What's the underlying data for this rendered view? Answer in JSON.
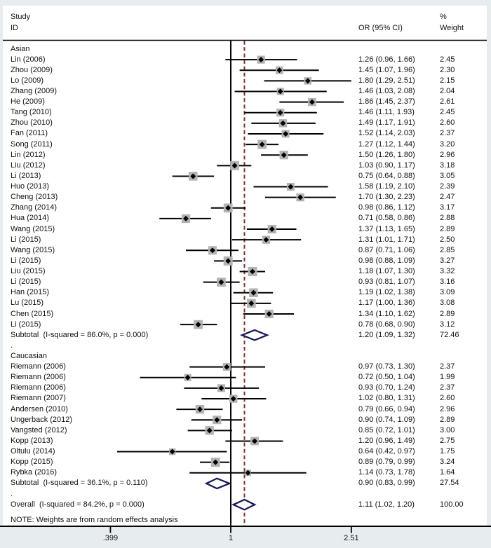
{
  "header": {
    "col_study_1": "Study",
    "col_study_2": "ID",
    "col_or": "OR (95% CI)",
    "col_weight_1": "%",
    "col_weight_2": "Weight"
  },
  "note": "NOTE: Weights are from random effects analysis",
  "chart_data": {
    "type": "forest",
    "effect_measure": "OR",
    "null_value": 1,
    "x_ticks": [
      {
        "value": 0.399,
        "label": ".399"
      },
      {
        "value": 1,
        "label": "1"
      },
      {
        "value": 2.51,
        "label": "2.51"
      }
    ],
    "groups": [
      {
        "label": "Asian",
        "studies": [
          {
            "name": "Lin (2006)",
            "or": 1.26,
            "lo": 0.96,
            "hi": 1.66,
            "ci": "1.26 (0.96, 1.66)",
            "weight": "2.45"
          },
          {
            "name": "Zhou (2009)",
            "or": 1.45,
            "lo": 1.07,
            "hi": 1.96,
            "ci": "1.45 (1.07, 1.96)",
            "weight": "2.30"
          },
          {
            "name": "Lo (2009)",
            "or": 1.8,
            "lo": 1.29,
            "hi": 2.51,
            "ci": "1.80 (1.29, 2.51)",
            "weight": "2.15"
          },
          {
            "name": "Zhang (2009)",
            "or": 1.46,
            "lo": 1.03,
            "hi": 2.08,
            "ci": "1.46 (1.03, 2.08)",
            "weight": "2.04"
          },
          {
            "name": "He (2009)",
            "or": 1.86,
            "lo": 1.45,
            "hi": 2.37,
            "ci": "1.86 (1.45, 2.37)",
            "weight": "2.61"
          },
          {
            "name": "Tang (2010)",
            "or": 1.46,
            "lo": 1.11,
            "hi": 1.93,
            "ci": "1.46 (1.11, 1.93)",
            "weight": "2.45"
          },
          {
            "name": "Zhou (2010)",
            "or": 1.49,
            "lo": 1.17,
            "hi": 1.91,
            "ci": "1.49 (1.17, 1.91)",
            "weight": "2.60"
          },
          {
            "name": "Fan (2011)",
            "or": 1.52,
            "lo": 1.14,
            "hi": 2.03,
            "ci": "1.52 (1.14, 2.03)",
            "weight": "2.37"
          },
          {
            "name": "Song (2011)",
            "or": 1.27,
            "lo": 1.12,
            "hi": 1.44,
            "ci": "1.27 (1.12, 1.44)",
            "weight": "3.20"
          },
          {
            "name": "Lin (2012)",
            "or": 1.5,
            "lo": 1.26,
            "hi": 1.8,
            "ci": "1.50 (1.26, 1.80)",
            "weight": "2.96"
          },
          {
            "name": "Liu (2012)",
            "or": 1.03,
            "lo": 0.9,
            "hi": 1.17,
            "ci": "1.03 (0.90, 1.17)",
            "weight": "3.18"
          },
          {
            "name": "Li (2013)",
            "or": 0.75,
            "lo": 0.64,
            "hi": 0.88,
            "ci": "0.75 (0.64, 0.88)",
            "weight": "3.05"
          },
          {
            "name": "Huo (2013)",
            "or": 1.58,
            "lo": 1.19,
            "hi": 2.1,
            "ci": "1.58 (1.19, 2.10)",
            "weight": "2.39"
          },
          {
            "name": "Cheng (2013)",
            "or": 1.7,
            "lo": 1.3,
            "hi": 2.23,
            "ci": "1.70 (1.30, 2.23)",
            "weight": "2.47"
          },
          {
            "name": "Zhang (2014)",
            "or": 0.98,
            "lo": 0.86,
            "hi": 1.12,
            "ci": "0.98 (0.86, 1.12)",
            "weight": "3.17"
          },
          {
            "name": "Hua (2014)",
            "or": 0.71,
            "lo": 0.58,
            "hi": 0.86,
            "ci": "0.71 (0.58, 0.86)",
            "weight": "2.88"
          },
          {
            "name": "Wang (2015)",
            "or": 1.37,
            "lo": 1.13,
            "hi": 1.65,
            "ci": "1.37 (1.13, 1.65)",
            "weight": "2.89"
          },
          {
            "name": "Li (2015)",
            "or": 1.31,
            "lo": 1.01,
            "hi": 1.71,
            "ci": "1.31 (1.01, 1.71)",
            "weight": "2.50"
          },
          {
            "name": "Wang (2015)",
            "or": 0.87,
            "lo": 0.71,
            "hi": 1.06,
            "ci": "0.87 (0.71, 1.06)",
            "weight": "2.85"
          },
          {
            "name": "Li (2015)",
            "or": 0.98,
            "lo": 0.88,
            "hi": 1.09,
            "ci": "0.98 (0.88, 1.09)",
            "weight": "3.27"
          },
          {
            "name": "Liu (2015)",
            "or": 1.18,
            "lo": 1.07,
            "hi": 1.3,
            "ci": "1.18 (1.07, 1.30)",
            "weight": "3.32"
          },
          {
            "name": "Li (2015)",
            "or": 0.93,
            "lo": 0.81,
            "hi": 1.07,
            "ci": "0.93 (0.81, 1.07)",
            "weight": "3.16"
          },
          {
            "name": "Han (2015)",
            "or": 1.19,
            "lo": 1.02,
            "hi": 1.38,
            "ci": "1.19 (1.02, 1.38)",
            "weight": "3.09"
          },
          {
            "name": "Lu (2015)",
            "or": 1.17,
            "lo": 1.0,
            "hi": 1.36,
            "ci": "1.17 (1.00, 1.36)",
            "weight": "3.08"
          },
          {
            "name": "Chen (2015)",
            "or": 1.34,
            "lo": 1.1,
            "hi": 1.62,
            "ci": "1.34 (1.10, 1.62)",
            "weight": "2.89"
          },
          {
            "name": "Li (2015)",
            "or": 0.78,
            "lo": 0.68,
            "hi": 0.9,
            "ci": "0.78 (0.68, 0.90)",
            "weight": "3.12"
          }
        ],
        "subtotal": {
          "label": "Subtotal  (I-squared = 86.0%, p = 0.000)",
          "or": 1.2,
          "lo": 1.09,
          "hi": 1.32,
          "ci": "1.20 (1.09, 1.32)",
          "weight": "72.46"
        }
      },
      {
        "label": "Caucasian",
        "studies": [
          {
            "name": "Riemann (2006)",
            "or": 0.97,
            "lo": 0.73,
            "hi": 1.3,
            "ci": "0.97 (0.73, 1.30)",
            "weight": "2.37"
          },
          {
            "name": "Riemann (2006)",
            "or": 0.72,
            "lo": 0.5,
            "hi": 1.04,
            "ci": "0.72 (0.50, 1.04)",
            "weight": "1.99"
          },
          {
            "name": "Riemann (2006)",
            "or": 0.93,
            "lo": 0.7,
            "hi": 1.24,
            "ci": "0.93 (0.70, 1.24)",
            "weight": "2.37"
          },
          {
            "name": "Riemann (2007)",
            "or": 1.02,
            "lo": 0.8,
            "hi": 1.31,
            "ci": "1.02 (0.80, 1.31)",
            "weight": "2.60"
          },
          {
            "name": "Andersen (2010)",
            "or": 0.79,
            "lo": 0.66,
            "hi": 0.94,
            "ci": "0.79 (0.66, 0.94)",
            "weight": "2.96"
          },
          {
            "name": "Ungerback (2012)",
            "or": 0.9,
            "lo": 0.74,
            "hi": 1.09,
            "ci": "0.90 (0.74, 1.09)",
            "weight": "2.89"
          },
          {
            "name": "Vangsted (2012)",
            "or": 0.85,
            "lo": 0.72,
            "hi": 1.01,
            "ci": "0.85 (0.72, 1.01)",
            "weight": "3.00"
          },
          {
            "name": "Kopp (2013)",
            "or": 1.2,
            "lo": 0.96,
            "hi": 1.49,
            "ci": "1.20 (0.96, 1.49)",
            "weight": "2.75"
          },
          {
            "name": "Oltulu (2014)",
            "or": 0.64,
            "lo": 0.42,
            "hi": 0.97,
            "ci": "0.64 (0.42, 0.97)",
            "weight": "1.75"
          },
          {
            "name": "Kopp (2015)",
            "or": 0.89,
            "lo": 0.79,
            "hi": 0.99,
            "ci": "0.89 (0.79, 0.99)",
            "weight": "3.24"
          },
          {
            "name": "Rybka (2016)",
            "or": 1.14,
            "lo": 0.73,
            "hi": 1.78,
            "ci": "1.14 (0.73, 1.78)",
            "weight": "1.64"
          }
        ],
        "subtotal": {
          "label": "Subtotal  (I-squared = 36.1%, p = 0.110)",
          "or": 0.9,
          "lo": 0.83,
          "hi": 0.99,
          "ci": "0.90 (0.83, 0.99)",
          "weight": "27.54"
        }
      }
    ],
    "overall": {
      "label": "Overall  (I-squared = 84.2%, p = 0.000)",
      "or": 1.11,
      "lo": 1.02,
      "hi": 1.2,
      "ci": "1.11 (1.02, 1.20)",
      "weight": "100.00"
    },
    "separator_row": ".",
    "style": {
      "diamond_color": "#1b1b58",
      "dashed_line_color": "#7d3530",
      "box_color": "#b3b3b3",
      "marker_color": "#000000",
      "line_color": "#000000",
      "background": "#e7ecef",
      "panel": "#ffffff"
    }
  }
}
